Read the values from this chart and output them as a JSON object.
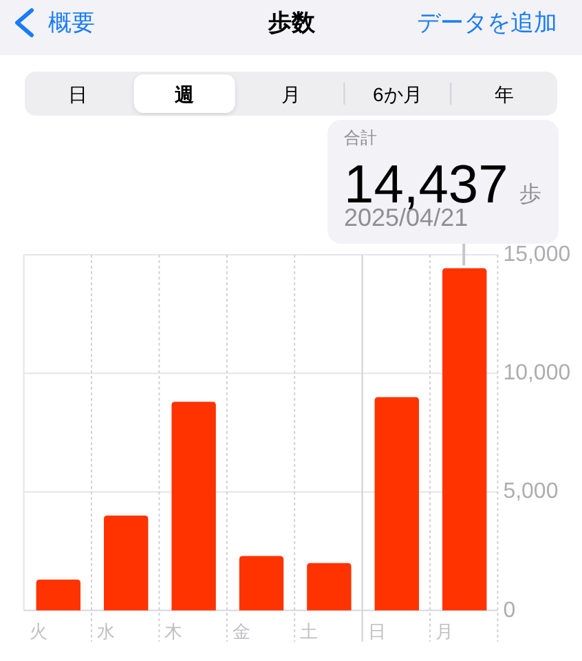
{
  "chart_data": {
    "type": "bar",
    "title": "歩数",
    "categories": [
      "火",
      "水",
      "木",
      "金",
      "土",
      "日",
      "月"
    ],
    "values": [
      1300,
      4000,
      8800,
      2300,
      2000,
      9000,
      14437
    ],
    "color": "#ff3300",
    "ylim": [
      0,
      15000
    ],
    "yticks": [
      0,
      {
        "value": 5000,
        "label": "5,000"
      },
      {
        "value": 10000,
        "label": "10,000"
      },
      {
        "value": 15000,
        "label": "15,000"
      }
    ],
    "grid": true,
    "ref_lines": [
      {
        "axis": "x",
        "value": "日",
        "color": "#d1d1d6"
      }
    ],
    "annotations": [
      "概要",
      "データを追加",
      "日",
      "週",
      "月",
      "6か月",
      "年",
      "合計",
      {
        "text": "14,437",
        "x": "月",
        "y": 14437
      },
      "歩",
      "2025/04/21"
    ]
  }
}
